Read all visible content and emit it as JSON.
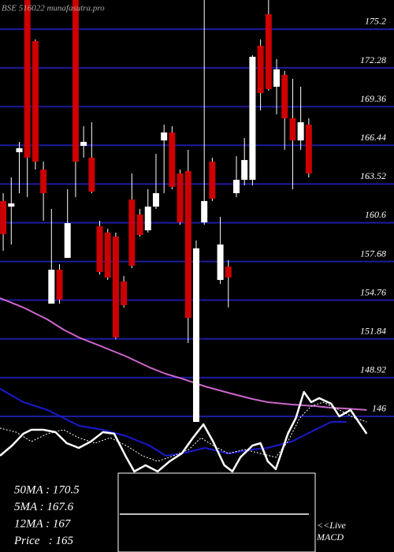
{
  "chart_data": {
    "type": "candlestick",
    "title": "BSE 516022 munafasutra.pro",
    "ylim": [
      135.77,
      177.4
    ],
    "xlim": [
      -0.4,
      48.6
    ],
    "yticks": [
      175.2,
      172.28,
      169.36,
      166.44,
      163.52,
      160.6,
      157.68,
      154.76,
      151.84,
      148.92,
      146
    ],
    "grid": true,
    "grid_color": "#1c1ca0",
    "up_color": "#ffffff",
    "down_color": "#cc0000",
    "open": [
      162.24,
      161.82,
      165.92,
      177.4,
      174.31,
      164.61,
      154.5,
      157.06,
      157.95,
      177.4,
      166.4,
      165.51,
      160.33,
      159.86,
      159.56,
      156.17,
      162.35,
      161.22,
      160.03,
      161.82,
      166.81,
      167.41,
      164.32,
      164.5,
      145.58,
      160.63,
      165.21,
      156.29,
      157.3,
      162.83,
      163.84,
      163.84,
      173.95,
      176.33,
      170.86,
      171.75,
      168.48,
      166.81,
      168.0
    ],
    "high": [
      162.83,
      164.02,
      166.7,
      177.4,
      174.43,
      165.21,
      161.64,
      157.48,
      163.13,
      177.4,
      167.88,
      168.18,
      160.75,
      160.15,
      159.86,
      156.59,
      164.32,
      161.64,
      163.13,
      165.8,
      168.0,
      167.88,
      164.61,
      166.1,
      159.26,
      177.4,
      165.51,
      161.05,
      157.77,
      165.62,
      166.99,
      173.24,
      174.43,
      177.4,
      172.94,
      172.05,
      171.45,
      170.86,
      168.48
    ],
    "low": [
      158.49,
      158.96,
      162.83,
      162.53,
      164.61,
      160.75,
      154.5,
      154.5,
      157.95,
      162.53,
      165.51,
      162.83,
      156.7,
      156.29,
      151.83,
      154.21,
      157.18,
      159.56,
      159.86,
      161.64,
      162.83,
      163.13,
      160.45,
      151.53,
      145.58,
      160.45,
      162.24,
      155.99,
      154.21,
      162.53,
      163.42,
      163.42,
      169.07,
      170.56,
      168.78,
      166.1,
      163.13,
      166.1,
      164.02
    ],
    "close": [
      159.74,
      162.06,
      166.22,
      165.51,
      165.21,
      162.83,
      157.06,
      154.8,
      160.57,
      165.21,
      166.7,
      162.95,
      156.88,
      156.47,
      151.95,
      154.39,
      157.36,
      159.68,
      161.82,
      162.83,
      167.41,
      163.31,
      160.63,
      153.43,
      158.67,
      162.24,
      162.41,
      158.96,
      156.47,
      163.84,
      165.33,
      173.12,
      170.38,
      170.68,
      172.17,
      168.48,
      166.81,
      168.18,
      164.32
    ],
    "lines": [
      {
        "color": "#cc66cc",
        "dashed": false,
        "width": 2,
        "x": [
          -0.4,
          2.5,
          5.5,
          7.5,
          9.4,
          12.4,
          15.3,
          18.2,
          20.2,
          22.2,
          25.1,
          28.0,
          31.0,
          32.9,
          35.9,
          38.8,
          40.8,
          42.7,
          45.2
        ],
        "values": [
          154.92,
          154.21,
          153.31,
          152.54,
          151.95,
          151.23,
          150.52,
          149.69,
          149.21,
          148.85,
          148.26,
          147.78,
          147.31,
          147.07,
          146.89,
          146.77,
          146.65,
          146.59,
          146.48
        ]
      },
      {
        "color": "#1a1ad0",
        "dashed": false,
        "width": 2,
        "x": [
          -0.4,
          2.5,
          5.5,
          7.5,
          9.4,
          12.4,
          15.3,
          18.2,
          20.2,
          22.2,
          25.1,
          28.0,
          31.0,
          32.9,
          35.9,
          38.8,
          40.8,
          42.7
        ],
        "values": [
          148.08,
          147.07,
          146.48,
          145.88,
          145.29,
          144.99,
          144.51,
          143.8,
          143.03,
          143.2,
          143.62,
          143.2,
          143.5,
          143.62,
          144.1,
          144.99,
          145.58,
          145.58
        ]
      },
      {
        "color": "#ffffff",
        "dashed": false,
        "width": 2.5,
        "x": [
          -0.4,
          1.1,
          2.5,
          3.5,
          5.0,
          6.5,
          7.9,
          9.4,
          10.9,
          12.4,
          13.8,
          15.3,
          16.3,
          17.7,
          19.2,
          20.7,
          22.2,
          23.6,
          24.9,
          26.1,
          27.5,
          28.5,
          29.5,
          31.0,
          32.0,
          32.9,
          33.9,
          35.4,
          36.4,
          37.4,
          38.3,
          39.3,
          40.8,
          41.8,
          43.2,
          44.2,
          45.2
        ],
        "values": [
          143.03,
          143.8,
          144.69,
          144.99,
          144.99,
          144.81,
          143.98,
          143.62,
          144.1,
          144.81,
          144.69,
          142.91,
          141.84,
          142.31,
          141.84,
          142.61,
          143.2,
          144.39,
          145.4,
          144.1,
          142.31,
          141.84,
          142.91,
          143.8,
          143.98,
          142.61,
          142.02,
          144.69,
          145.88,
          147.84,
          147.07,
          147.37,
          146.95,
          146.0,
          146.48,
          145.58,
          144.69
        ]
      },
      {
        "color": "#ffffff",
        "dashed": true,
        "width": 1,
        "x": [
          -0.4,
          1.6,
          3.5,
          5.5,
          7.5,
          9.4,
          11.4,
          13.3,
          15.3,
          17.3,
          19.2,
          21.2,
          23.1,
          24.6,
          26.1,
          28.0,
          30.0,
          32.0,
          33.9,
          35.4,
          36.9,
          38.3,
          39.8,
          41.8,
          43.7,
          45.2
        ],
        "values": [
          145.11,
          144.81,
          144.1,
          144.69,
          144.99,
          144.39,
          143.98,
          144.39,
          143.8,
          143.03,
          142.61,
          143.03,
          143.5,
          144.39,
          143.8,
          143.2,
          143.5,
          143.2,
          142.91,
          144.1,
          145.88,
          146.77,
          147.07,
          146.48,
          145.88,
          145.58
        ]
      }
    ],
    "info": [
      "50MA : 170.5",
      "5MA : 167.6",
      "12MA : 167",
      "Price   : 165"
    ],
    "panel_label": [
      "<<Live",
      "MACD"
    ]
  }
}
